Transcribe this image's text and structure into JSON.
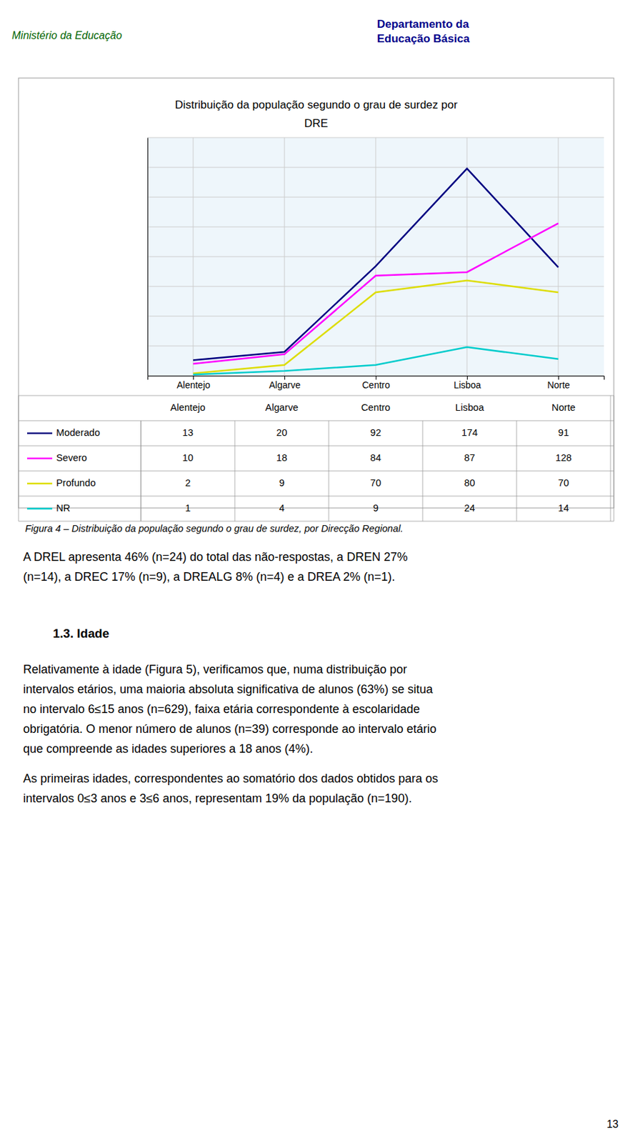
{
  "chart_data": {
    "type": "line",
    "title": "Distribuição da população segundo o grau de surdez por\nDRE",
    "categories": [
      "Alentejo",
      "Algarve",
      "Centro",
      "Lisboa",
      "Norte"
    ],
    "series": [
      {
        "name": "Moderado",
        "values": [
          13,
          20,
          92,
          174,
          91
        ],
        "color": "#000080"
      },
      {
        "name": "Severo",
        "values": [
          10,
          18,
          84,
          87,
          128
        ],
        "color": "#FF00FF"
      },
      {
        "name": "Profundo",
        "values": [
          2,
          9,
          70,
          80,
          70
        ],
        "color": "#DDDD00"
      },
      {
        "name": "NR",
        "values": [
          1,
          4,
          9,
          24,
          14
        ],
        "color": "#00CCCC"
      }
    ],
    "ylim": [
      0,
      200
    ],
    "yticks": [
      0,
      25,
      50,
      75,
      100,
      125,
      150,
      175,
      200
    ],
    "grid": true,
    "tick_labels": "x"
  },
  "header_left": "Ministério da Educação",
  "header_right": [
    "Departamento da",
    "Educação Básica"
  ],
  "figure_caption": "Figura 4 – Distribuição da população segundo o grau de surdez, por Direcção Regional.",
  "paragraph1": [
    "A DREL apresenta 46% (n=24) do total das não-respostas, a DREN 27%",
    "(n=14), a DREC 17% (n=9), a DREALG 8% (n=4) e a DREA 2% (n=1)."
  ],
  "section_title": "1.3. Idade",
  "paragraph2": [
    "Relativamente à idade (Figura 5), verificamos que, numa distribuição por",
    "intervalos etários, uma maioria absoluta significativa de alunos (63%) se situa",
    "no intervalo 6≤15 anos (n=629), faixa etária correspondente à escolaridade",
    "obrigatória. O menor número de alunos (n=39) corresponde ao intervalo etário",
    "que compreende as idades superiores a 18 anos (4%)."
  ],
  "paragraph3": [
    "As primeiras idades, correspondentes ao somatório dos dados obtidos para os",
    "intervalos 0≤3 anos e 3≤6 anos, representam 19% da população (n=190)."
  ],
  "page_number": "13"
}
